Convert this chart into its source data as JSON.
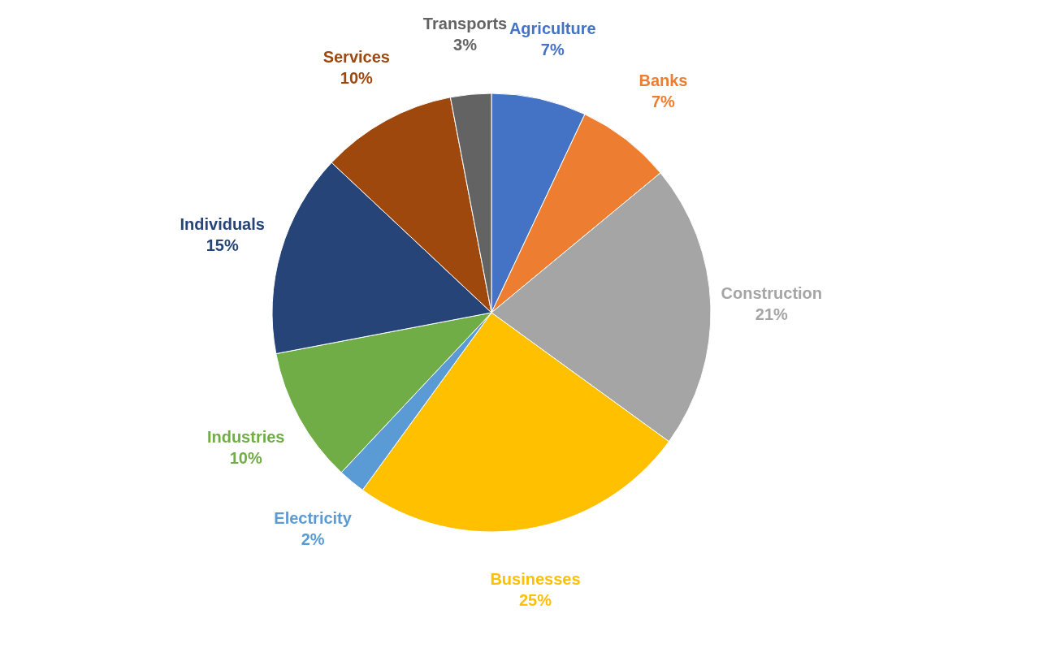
{
  "chart_data": {
    "type": "pie",
    "categories": [
      "Agriculture",
      "Banks",
      "Construction",
      "Businesses",
      "Electricity",
      "Industries",
      "Individuals",
      "Services",
      "Transports"
    ],
    "values": [
      7,
      7,
      21,
      25,
      2,
      10,
      15,
      10,
      3
    ],
    "colors": [
      "#4472c4",
      "#ed7d31",
      "#a5a5a5",
      "#ffc000",
      "#5b9bd5",
      "#70ad47",
      "#264478",
      "#9e480e",
      "#636363"
    ],
    "value_labels": [
      "7%",
      "7%",
      "21%",
      "25%",
      "2%",
      "10%",
      "15%",
      "10%",
      "3%"
    ]
  }
}
